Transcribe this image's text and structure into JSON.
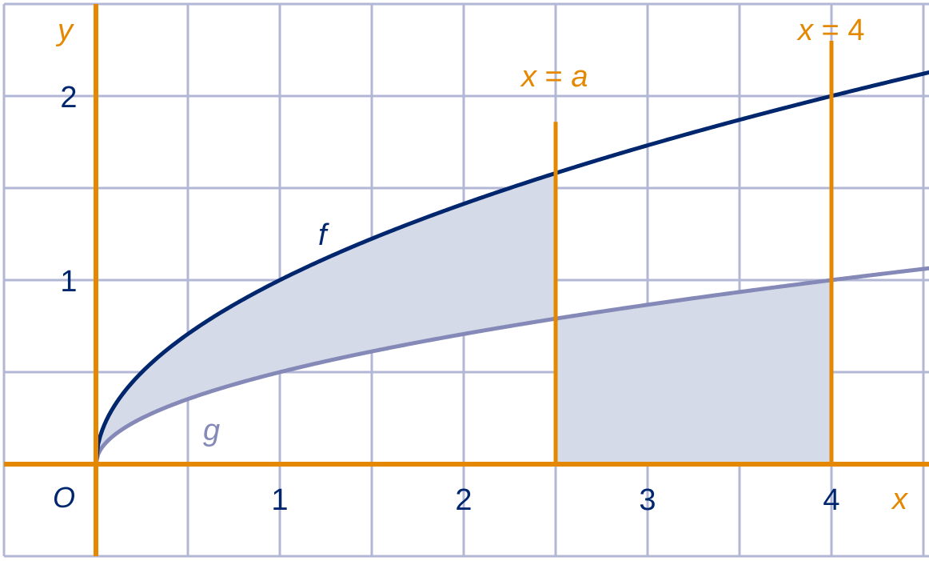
{
  "chart_data": {
    "type": "line",
    "xlabel": "x",
    "ylabel": "y",
    "origin_label": "O",
    "xlim": [
      -0.5,
      4.6
    ],
    "ylim": [
      -0.5,
      2.5
    ],
    "grid": true,
    "grid_step": 0.5,
    "x_ticks": [
      {
        "value": 1,
        "label": "1"
      },
      {
        "value": 2,
        "label": "2"
      },
      {
        "value": 3,
        "label": "3"
      },
      {
        "value": 4,
        "label": "4"
      }
    ],
    "y_ticks": [
      {
        "value": 1,
        "label": "1"
      },
      {
        "value": 2,
        "label": "2"
      }
    ],
    "series": [
      {
        "name": "f",
        "formula": "sqrt(x)",
        "color": "#00266e"
      },
      {
        "name": "g",
        "formula": "0.5*sqrt(x)",
        "color": "#8589b8"
      }
    ],
    "vertical_lines": [
      {
        "x": 2.5,
        "label": "x = a",
        "label_var": "x",
        "label_eq": " = ",
        "label_val": "a",
        "top_y": 1.86
      },
      {
        "x": 4,
        "label": "x = 4",
        "label_var": "x",
        "label_eq": " = ",
        "label_val": "4",
        "top_y": 2.3
      }
    ],
    "shaded_regions": [
      {
        "between": [
          "f",
          "g"
        ],
        "x_range": [
          0,
          2.5
        ]
      },
      {
        "between": [
          "g",
          "x-axis"
        ],
        "x_range": [
          2.5,
          4
        ]
      }
    ],
    "colors": {
      "axes": "#e38800",
      "grid": "#b3b7d6",
      "fill": "#d5dae8"
    }
  }
}
